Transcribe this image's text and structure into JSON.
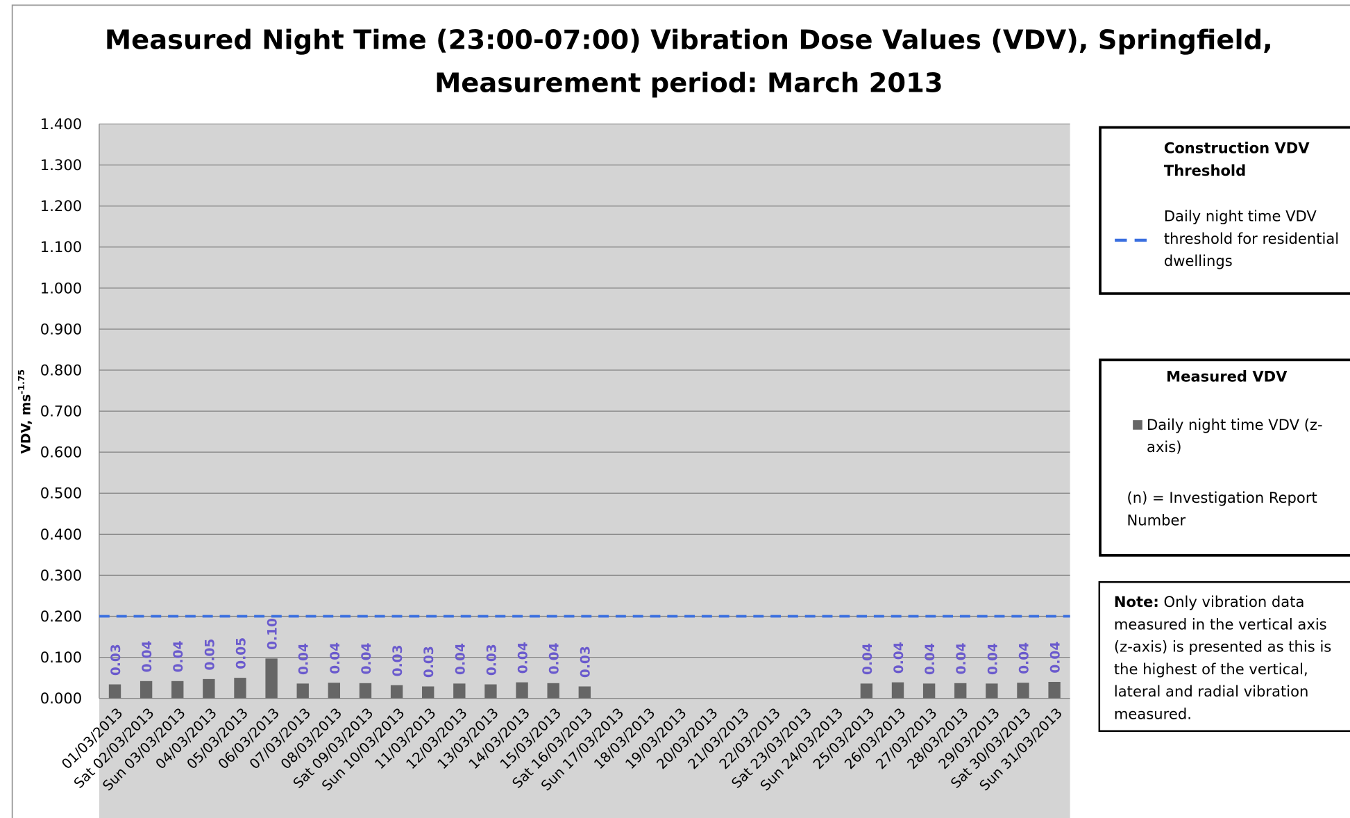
{
  "chart_data": {
    "type": "bar",
    "title": [
      "Measured Night Time (23:00-07:00) Vibration Dose Values (VDV), Springfield,",
      "Measurement period: March 2013"
    ],
    "ylabel": "VDV, ms",
    "ylabel_sup": "-1.75",
    "categories": [
      "01/03/2013",
      "Sat 02/03/2013",
      "Sun 03/03/2013",
      "04/03/2013",
      "05/03/2013",
      "06/03/2013",
      "07/03/2013",
      "08/03/2013",
      "Sat 09/03/2013",
      "Sun 10/03/2013",
      "11/03/2013",
      "12/03/2013",
      "13/03/2013",
      "14/03/2013",
      "15/03/2013",
      "Sat 16/03/2013",
      "Sun 17/03/2013",
      "18/03/2013",
      "19/03/2013",
      "20/03/2013",
      "21/03/2013",
      "22/03/2013",
      "Sat 23/03/2013",
      "Sun 24/03/2013",
      "25/03/2013",
      "26/03/2013",
      "27/03/2013",
      "28/03/2013",
      "29/03/2013",
      "Sat 30/03/2013",
      "Sun 31/03/2013"
    ],
    "values": [
      0.034,
      0.042,
      0.042,
      0.047,
      0.05,
      0.097,
      0.036,
      0.038,
      0.037,
      0.032,
      0.029,
      0.036,
      0.034,
      0.039,
      0.037,
      0.029,
      null,
      null,
      null,
      null,
      null,
      null,
      null,
      null,
      0.036,
      0.039,
      0.036,
      0.037,
      0.036,
      0.038,
      0.04
    ],
    "value_labels": [
      "0.03",
      "0.04",
      "0.04",
      "0.05",
      "0.05",
      "0.10",
      "0.04",
      "0.04",
      "0.04",
      "0.03",
      "0.03",
      "0.04",
      "0.03",
      "0.04",
      "0.04",
      "0.03",
      null,
      null,
      null,
      null,
      null,
      null,
      null,
      null,
      "0.04",
      "0.04",
      "0.04",
      "0.04",
      "0.04",
      "0.04",
      "0.04"
    ],
    "color": "#666666",
    "value_label_color": "#6a5acd",
    "ylim": [
      0,
      1.4
    ],
    "yticks": [
      {
        "value": 0,
        "label": "0.000"
      },
      {
        "value": 0.1,
        "label": "0.100"
      },
      {
        "value": 0.2,
        "label": "0.200"
      },
      {
        "value": 0.3,
        "label": "0.300"
      },
      {
        "value": 0.4,
        "label": "0.400"
      },
      {
        "value": 0.5,
        "label": "0.500"
      },
      {
        "value": 0.6,
        "label": "0.600"
      },
      {
        "value": 0.7,
        "label": "0.700"
      },
      {
        "value": 0.8,
        "label": "0.800"
      },
      {
        "value": 0.9,
        "label": "0.900"
      },
      {
        "value": 1.0,
        "label": "1.000"
      },
      {
        "value": 1.1,
        "label": "1.100"
      },
      {
        "value": 1.2,
        "label": "1.200"
      },
      {
        "value": 1.3,
        "label": "1.300"
      },
      {
        "value": 1.4,
        "label": "1.400"
      }
    ],
    "grid": true,
    "threshold": {
      "value": 0.2,
      "color": "#3a6fe0"
    },
    "legend": {
      "threshold_title": "Construction VDV Threshold",
      "threshold_text": "Daily night time VDV threshold for residential dwellings",
      "measured_title": "Measured VDV",
      "measured_text": "Daily night time VDV (z-axis)",
      "report_text": "(n) = Investigation Report Number"
    },
    "note_label": "Note:",
    "note": "Only vibration data measured in the vertical axis (z-axis) is presented as this is the highest of the vertical, lateral and radial vibration measured."
  }
}
